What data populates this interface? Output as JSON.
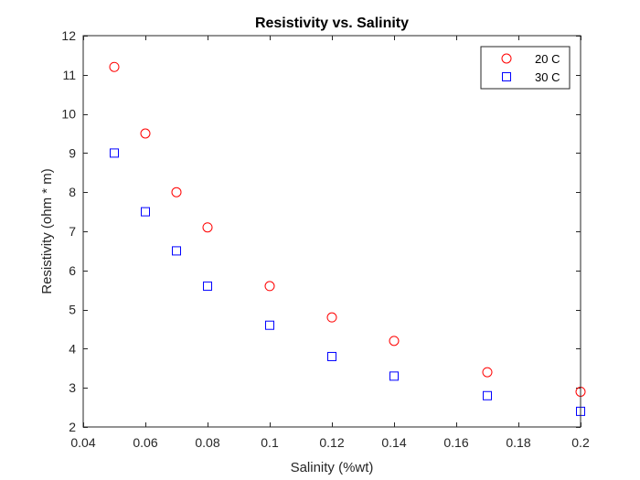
{
  "chart_data": {
    "type": "scatter",
    "title": "Resistivity vs. Salinity",
    "xlabel": "Salinity (%wt)",
    "ylabel": "Resistivity (ohm * m)",
    "xlim": [
      0.04,
      0.2
    ],
    "ylim": [
      2,
      12
    ],
    "xticks": [
      0.04,
      0.06,
      0.08,
      0.1,
      0.12,
      0.14,
      0.16,
      0.18,
      0.2
    ],
    "xtick_labels": [
      "0.04",
      "0.06",
      "0.08",
      "0.1",
      "0.12",
      "0.14",
      "0.16",
      "0.18",
      "0.2"
    ],
    "yticks": [
      2,
      3,
      4,
      5,
      6,
      7,
      8,
      9,
      10,
      11,
      12
    ],
    "ytick_labels": [
      "2",
      "3",
      "4",
      "5",
      "6",
      "7",
      "8",
      "9",
      "10",
      "11",
      "12"
    ],
    "grid": false,
    "legend_position": "top-right",
    "series": [
      {
        "name": "20 C",
        "marker": "circle",
        "color": "#ff0000",
        "x": [
          0.05,
          0.06,
          0.07,
          0.08,
          0.1,
          0.12,
          0.14,
          0.17,
          0.2
        ],
        "y": [
          11.2,
          9.5,
          8.0,
          7.1,
          5.6,
          4.8,
          4.2,
          3.4,
          2.9
        ]
      },
      {
        "name": "30 C",
        "marker": "square",
        "color": "#0000ff",
        "x": [
          0.05,
          0.06,
          0.07,
          0.08,
          0.1,
          0.12,
          0.14,
          0.17,
          0.2
        ],
        "y": [
          9.0,
          7.5,
          6.5,
          5.6,
          4.6,
          3.8,
          3.3,
          2.8,
          2.4
        ]
      }
    ]
  }
}
